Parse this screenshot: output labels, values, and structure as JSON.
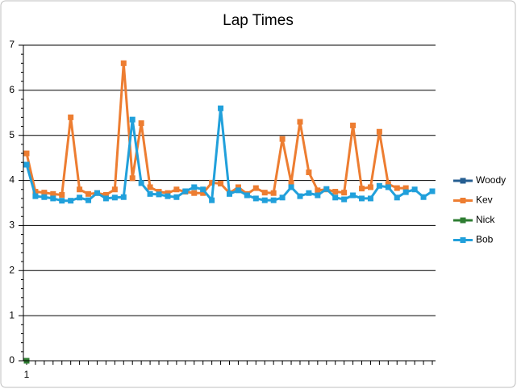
{
  "chart_data": {
    "type": "line",
    "title": "Lap Times",
    "categories": [
      "1",
      null,
      null,
      null,
      null,
      null,
      null,
      null,
      null,
      null,
      null,
      null,
      null,
      null,
      null,
      null,
      null,
      null,
      null,
      null,
      null,
      null,
      null,
      null,
      null,
      null,
      null,
      null,
      null,
      null,
      null,
      null,
      null,
      null,
      null,
      null,
      null,
      null,
      null,
      null,
      null,
      null,
      null,
      null,
      null,
      null,
      null
    ],
    "series": [
      {
        "name": "Woody",
        "color": "#255e91",
        "values": [
          0,
          null,
          null,
          null,
          null,
          null,
          null,
          null,
          null,
          null,
          null,
          null,
          null,
          null,
          null,
          null,
          null,
          null,
          null,
          null,
          null,
          null,
          null,
          null,
          null,
          null,
          null,
          null,
          null,
          null,
          null,
          null,
          null,
          null,
          null,
          null,
          null,
          null,
          null,
          null,
          null,
          null,
          null,
          null,
          null,
          null,
          null
        ]
      },
      {
        "name": "Kev",
        "color": "#ed7d31",
        "values": [
          4.6,
          3.75,
          3.73,
          3.7,
          3.68,
          5.4,
          3.8,
          3.7,
          3.72,
          3.68,
          3.8,
          6.6,
          4.05,
          5.27,
          3.85,
          3.75,
          3.72,
          3.8,
          3.75,
          3.72,
          3.72,
          3.95,
          3.93,
          3.72,
          3.85,
          3.7,
          3.83,
          3.73,
          3.72,
          4.92,
          3.95,
          5.3,
          4.18,
          3.78,
          3.8,
          3.75,
          3.73,
          5.22,
          3.82,
          3.85,
          5.08,
          3.92,
          3.83,
          3.83,
          null,
          null,
          null
        ]
      },
      {
        "name": "Nick",
        "color": "#2e7d32",
        "values": [
          0,
          null,
          null,
          null,
          null,
          null,
          null,
          null,
          null,
          null,
          null,
          null,
          null,
          null,
          null,
          null,
          null,
          null,
          null,
          null,
          null,
          null,
          null,
          null,
          null,
          null,
          null,
          null,
          null,
          null,
          null,
          null,
          null,
          null,
          null,
          null,
          null,
          null,
          null,
          null,
          null,
          null,
          null,
          null,
          null,
          null,
          null
        ]
      },
      {
        "name": "Bob",
        "color": "#21a0db",
        "values": [
          4.35,
          3.65,
          3.63,
          3.6,
          3.55,
          3.55,
          3.62,
          3.56,
          3.72,
          3.6,
          3.62,
          3.63,
          5.35,
          3.94,
          3.7,
          3.69,
          3.65,
          3.63,
          3.76,
          3.85,
          3.8,
          3.56,
          5.6,
          3.7,
          3.78,
          3.67,
          3.6,
          3.56,
          3.56,
          3.62,
          3.85,
          3.65,
          3.72,
          3.67,
          3.81,
          3.62,
          3.58,
          3.67,
          3.6,
          3.6,
          3.88,
          3.85,
          3.62,
          3.74,
          3.8,
          3.63,
          3.76
        ]
      }
    ],
    "ylim": [
      0,
      7
    ],
    "yticks": [
      0,
      1,
      2,
      3,
      4,
      5,
      6,
      7
    ],
    "grid": true,
    "legend": "right"
  }
}
